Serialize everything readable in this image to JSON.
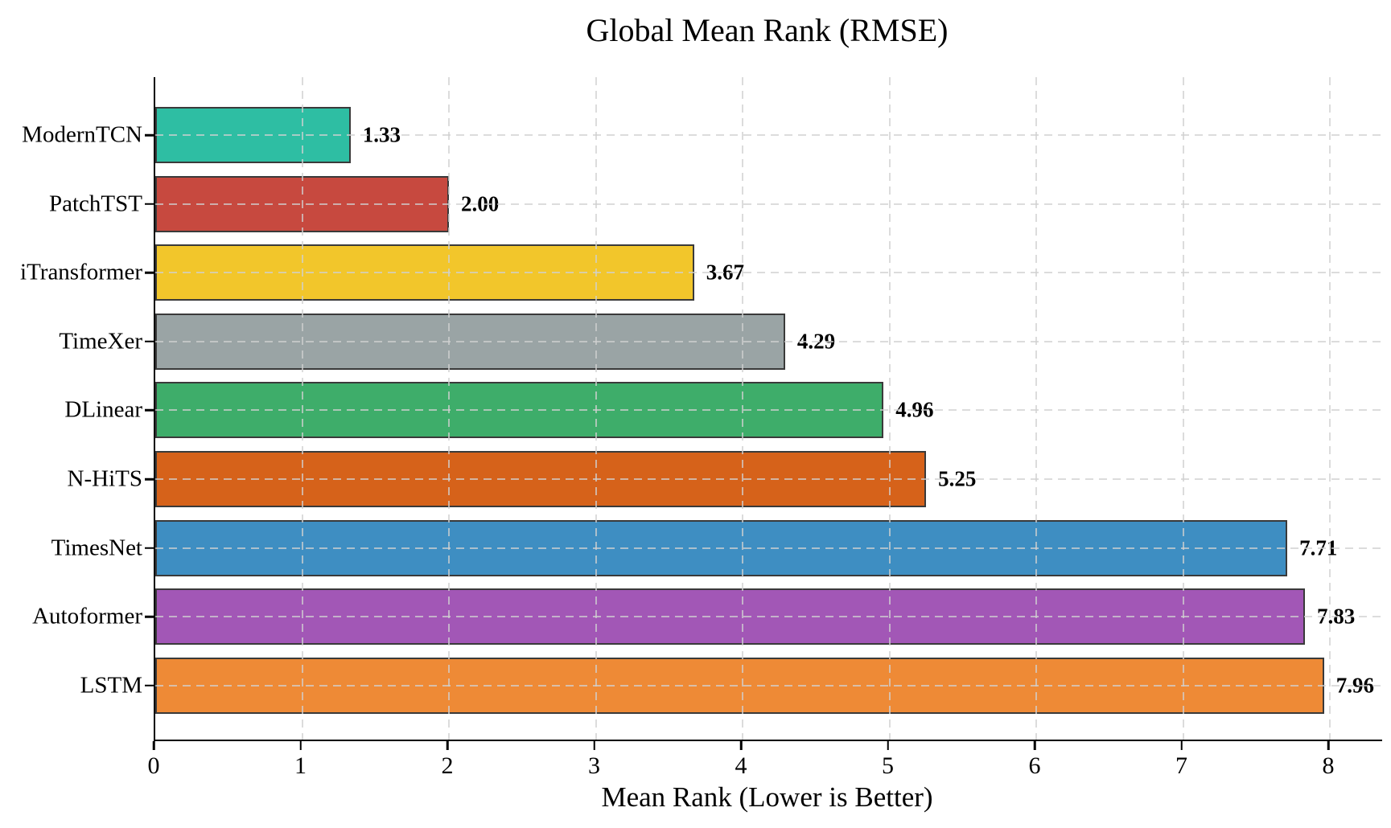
{
  "title": "Global Mean Rank (RMSE)",
  "chart_data": {
    "type": "bar",
    "orientation": "horizontal",
    "title": "Global Mean Rank (RMSE)",
    "xlabel": "Mean Rank (Lower is Better)",
    "ylabel": "",
    "categories": [
      "ModernTCN",
      "PatchTST",
      "iTransformer",
      "TimeXer",
      "DLinear",
      "N-HiTS",
      "TimesNet",
      "Autoformer",
      "LSTM"
    ],
    "values": [
      1.33,
      2.0,
      3.67,
      4.29,
      4.96,
      5.25,
      7.71,
      7.83,
      7.96
    ],
    "value_labels": [
      "1.33",
      "2.00",
      "3.67",
      "4.29",
      "4.96",
      "5.25",
      "7.71",
      "7.83",
      "7.96"
    ],
    "bar_colors": [
      "#2ebea3",
      "#c7493f",
      "#f2c62b",
      "#9aa4a5",
      "#3ead6a",
      "#d6621a",
      "#3e8ec2",
      "#a257b6",
      "#ee8a36"
    ],
    "bar_edge_color": "#3a3a3a",
    "xlim": [
      0,
      8.36
    ],
    "x_ticks": [
      "0",
      "1",
      "2",
      "3",
      "4",
      "5",
      "6",
      "7",
      "8"
    ],
    "grid": "dashed light-gray vertical and horizontal gridlines drawn over bars",
    "legend": "none",
    "background_color": "#ffffff",
    "text_color": "#000000"
  }
}
